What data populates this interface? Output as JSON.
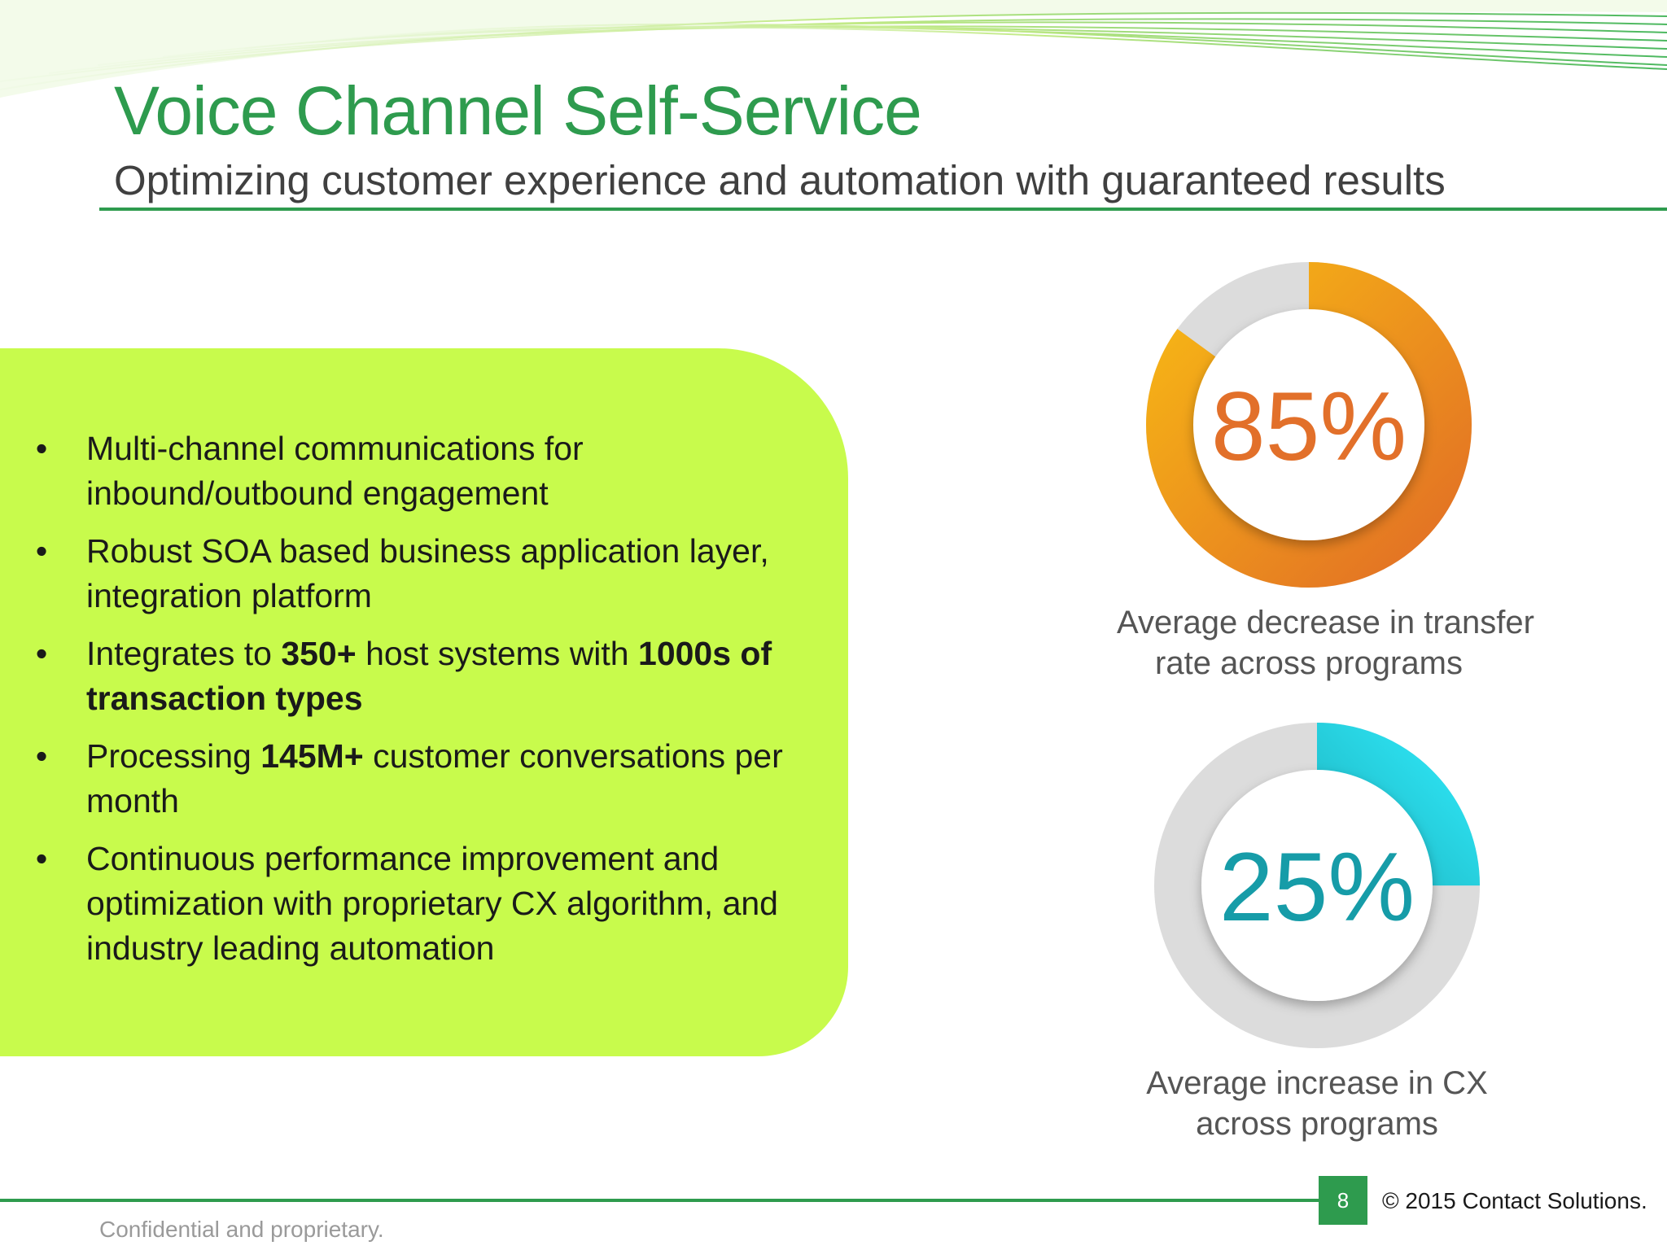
{
  "slide": {
    "title": "Voice Channel Self-Service",
    "subtitle": "Optimizing customer experience and automation with guaranteed results"
  },
  "bullets": [
    {
      "text": "Multi-channel communications for inbound/outbound engagement"
    },
    {
      "text": "Robust SOA based business application layer, integration platform"
    },
    {
      "pre": "Integrates to ",
      "b1": "350+",
      "mid": " host systems with ",
      "b2": "1000s of transaction types"
    },
    {
      "pre": "Processing ",
      "b1": "145M+",
      "post": " customer conversations per month"
    },
    {
      "text": "Continuous performance improvement and optimization with proprietary CX algorithm, and industry leading automation"
    }
  ],
  "bullet_marker": "•",
  "metrics": [
    {
      "value": "85%",
      "fraction": 0.85,
      "caption_line1": "Average decrease in transfer",
      "caption_line2": "rate  across programs",
      "color_main": "#f7b715",
      "color_dark": "#e26f25",
      "text_color": "#e2702a"
    },
    {
      "value": "25%",
      "fraction": 0.25,
      "caption_line1": "Average increase in CX",
      "caption_line2": "across programs",
      "color_main": "#2ee5f5",
      "color_dark": "#0b7d84",
      "text_color": "#169ca8"
    }
  ],
  "footer": {
    "page_number": "8",
    "copyright": "© 2015 Contact Solutions.",
    "confidential": "Confidential and proprietary."
  },
  "colors": {
    "brand_green": "#2e9b4e",
    "panel_green": "#c8fb4c",
    "ring_gray": "#dcdcdc"
  }
}
